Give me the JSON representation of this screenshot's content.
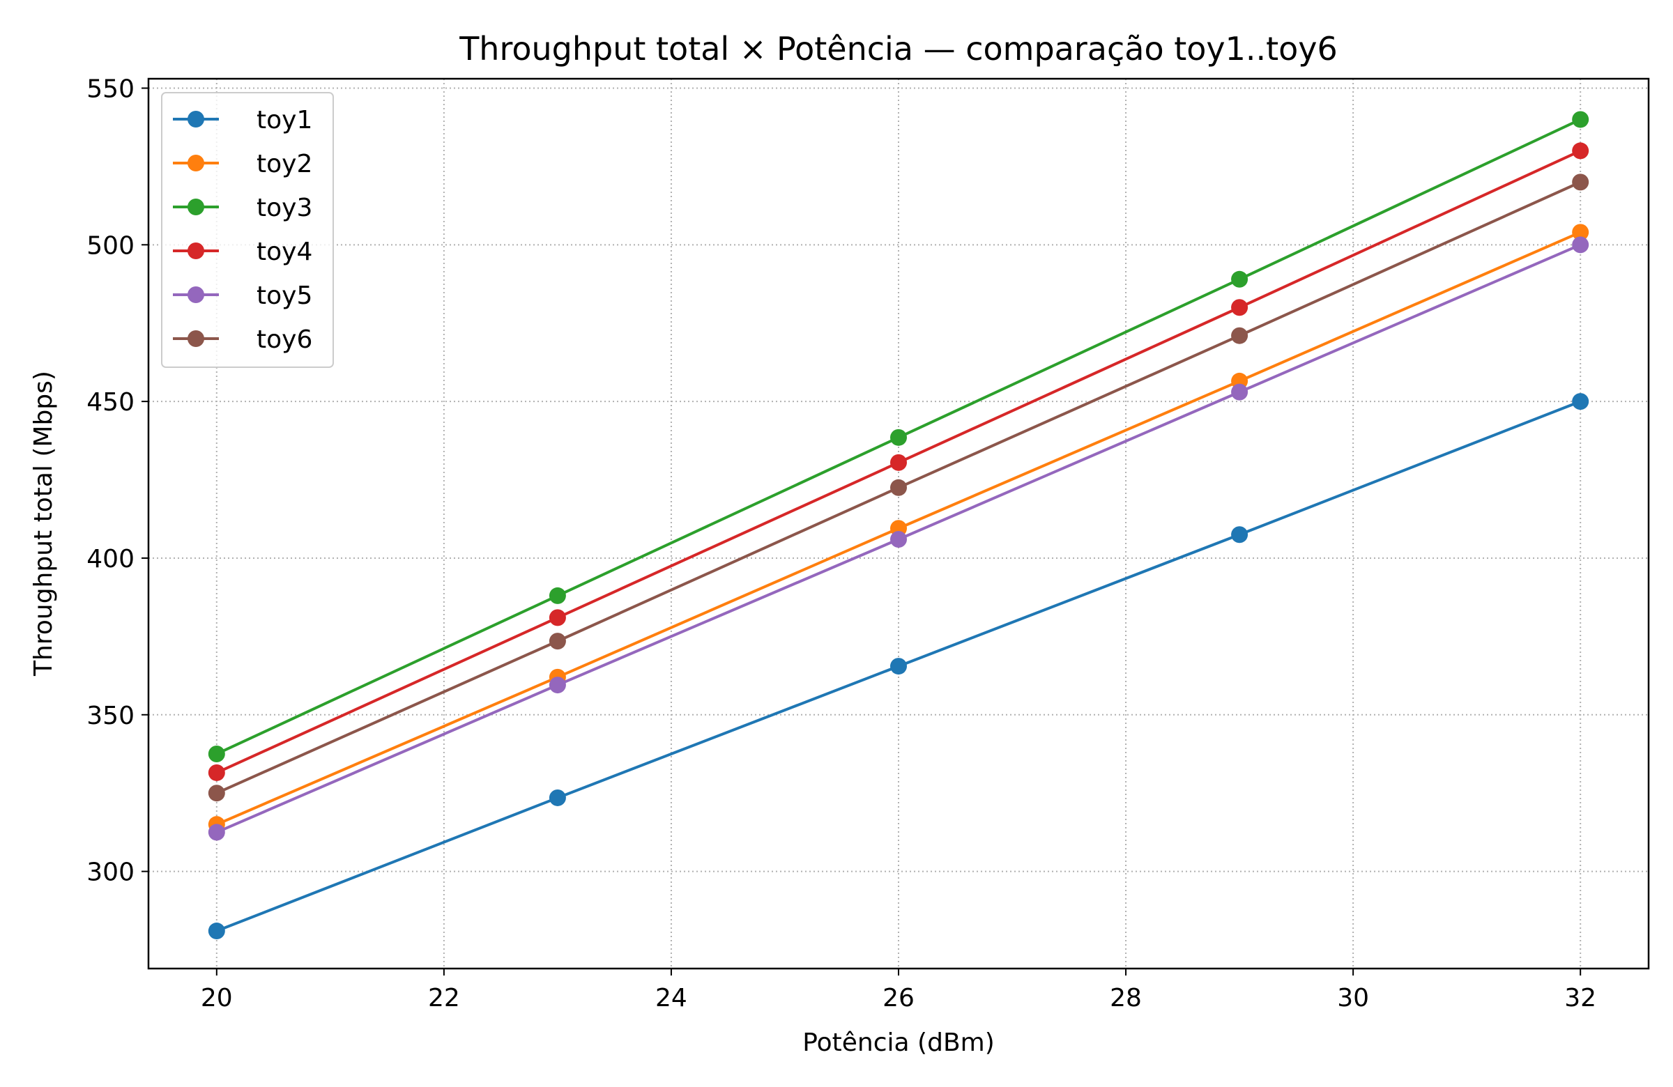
{
  "chart_data": {
    "type": "line",
    "title": "Throughput total × Potência — comparação toy1..toy6",
    "xlabel": "Potência (dBm)",
    "ylabel": "Throughput total (Mbps)",
    "xlim": [
      19.4,
      32.6
    ],
    "ylim": [
      269,
      553
    ],
    "xticks": [
      20,
      22,
      24,
      26,
      28,
      30,
      32
    ],
    "yticks": [
      300,
      350,
      400,
      450,
      500,
      550
    ],
    "grid": true,
    "legend_position": "top-left",
    "x": [
      20,
      23,
      26,
      29,
      32
    ],
    "series": [
      {
        "name": "toy1",
        "color": "#1f77b4",
        "values": [
          281,
          323.5,
          365.5,
          407.5,
          450
        ]
      },
      {
        "name": "toy2",
        "color": "#ff7f0e",
        "values": [
          315,
          362,
          409.5,
          456.5,
          504
        ]
      },
      {
        "name": "toy3",
        "color": "#2ca02c",
        "values": [
          337.5,
          388,
          438.5,
          489,
          540
        ]
      },
      {
        "name": "toy4",
        "color": "#d62728",
        "values": [
          331.5,
          381,
          430.5,
          480,
          530
        ]
      },
      {
        "name": "toy5",
        "color": "#9467bd",
        "values": [
          312.5,
          359.5,
          406,
          453,
          500
        ]
      },
      {
        "name": "toy6",
        "color": "#8c564b",
        "values": [
          325,
          373.5,
          422.5,
          471,
          520
        ]
      }
    ]
  }
}
